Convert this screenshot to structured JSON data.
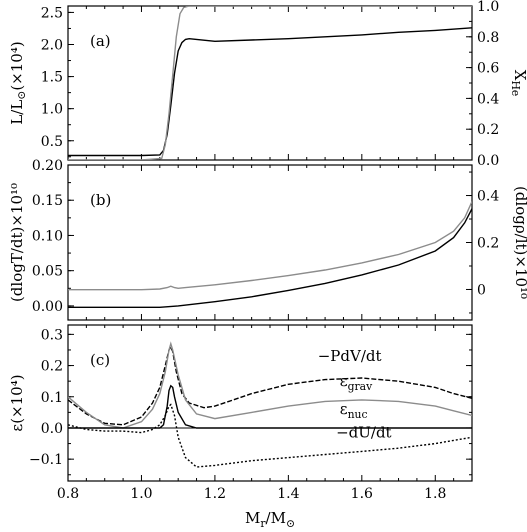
{
  "chart_data": [
    {
      "type": "line",
      "panel_label": "(a)",
      "xlim": [
        0.8,
        1.9
      ],
      "ylim": [
        0.2,
        2.6
      ],
      "y2lim": [
        0,
        1.0
      ],
      "ylabel": "L/L⊙(×10⁴)",
      "y2label": "X_He",
      "yticks": [
        0.5,
        1.0,
        1.5,
        2.0,
        2.5
      ],
      "ytick_labels": [
        "0.5",
        "1.0",
        "1.5",
        "2.0",
        "2.5"
      ],
      "y2ticks": [
        0,
        0.2,
        0.4,
        0.6,
        0.8,
        1.0
      ],
      "y2tick_labels": [
        "0.0",
        "0.2",
        "0.4",
        "0.6",
        "0.8",
        "1.0"
      ],
      "series": [
        {
          "color": "#000000",
          "x": [
            0.8,
            1.0,
            1.05,
            1.06,
            1.07,
            1.08,
            1.09,
            1.1,
            1.11,
            1.12,
            1.13,
            1.15,
            1.2,
            1.3,
            1.4,
            1.5,
            1.6,
            1.7,
            1.8,
            1.9
          ],
          "y": [
            0.27,
            0.27,
            0.28,
            0.35,
            0.6,
            1.05,
            1.55,
            1.9,
            2.03,
            2.08,
            2.09,
            2.08,
            2.05,
            2.07,
            2.09,
            2.12,
            2.15,
            2.19,
            2.22,
            2.26
          ]
        },
        {
          "color": "#8c8c8c",
          "axis": "right",
          "x": [
            0.8,
            1.0,
            1.055,
            1.065,
            1.075,
            1.085,
            1.095,
            1.105,
            1.115,
            1.13,
            1.9
          ],
          "y": [
            0.0,
            0.0,
            0.01,
            0.1,
            0.3,
            0.55,
            0.8,
            0.95,
            0.99,
            1.0,
            1.0
          ]
        }
      ]
    },
    {
      "type": "line",
      "panel_label": "(b)",
      "xlim": [
        0.8,
        1.9
      ],
      "ylim": [
        -0.02,
        0.2
      ],
      "y2lim": [
        -0.13,
        0.53
      ],
      "ylabel": "(dlogT/dt)×10¹⁰",
      "y2label": "(dlogρ/lt)×10¹⁰",
      "yticks": [
        0.0,
        0.05,
        0.1,
        0.15,
        0.2
      ],
      "ytick_labels": [
        "0.00",
        "0.05",
        "0.10",
        "0.15",
        "0.20"
      ],
      "y2ticks": [
        0,
        0.2,
        0.4
      ],
      "y2tick_labels": [
        "0",
        "0.2",
        "0.4"
      ],
      "series": [
        {
          "color": "#000000",
          "x": [
            0.8,
            1.0,
            1.05,
            1.1,
            1.2,
            1.3,
            1.4,
            1.5,
            1.6,
            1.7,
            1.8,
            1.85,
            1.88,
            1.9
          ],
          "y": [
            -0.002,
            -0.002,
            -0.002,
            0.0,
            0.006,
            0.013,
            0.022,
            0.032,
            0.044,
            0.058,
            0.078,
            0.097,
            0.118,
            0.138
          ]
        },
        {
          "color": "#8c8c8c",
          "x": [
            0.8,
            1.0,
            1.05,
            1.07,
            1.08,
            1.09,
            1.1,
            1.12,
            1.2,
            1.3,
            1.4,
            1.5,
            1.6,
            1.7,
            1.8,
            1.85,
            1.88,
            1.9
          ],
          "y": [
            0.023,
            0.023,
            0.024,
            0.026,
            0.028,
            0.026,
            0.025,
            0.026,
            0.03,
            0.036,
            0.043,
            0.051,
            0.061,
            0.073,
            0.09,
            0.106,
            0.125,
            0.148
          ]
        }
      ]
    },
    {
      "type": "line",
      "panel_label": "(c)",
      "xlim": [
        0.8,
        1.9
      ],
      "ylim": [
        -0.17,
        0.33
      ],
      "xlabel": "M_r/M⊙",
      "ylabel": "ε(×10⁴)",
      "xticks": [
        0.8,
        1.0,
        1.2,
        1.4,
        1.6,
        1.8
      ],
      "xtick_labels": [
        "0.8",
        "1.0",
        "1.2",
        "1.4",
        "1.6",
        "1.8"
      ],
      "yticks": [
        -0.1,
        0.0,
        0.1,
        0.2,
        0.3
      ],
      "ytick_labels": [
        "−0.1",
        "0.0",
        "0.1",
        "0.2",
        "0.3"
      ],
      "annotations": [
        {
          "text": "−PdV/dt",
          "x": 1.48,
          "y": 0.215
        },
        {
          "text": "ε",
          "sub": "grav",
          "x": 1.54,
          "y": 0.135
        },
        {
          "text": "ε",
          "sub": "nuc",
          "x": 1.54,
          "y": 0.045
        },
        {
          "text": "−dU/dt",
          "x": 1.53,
          "y": -0.03
        }
      ],
      "series": [
        {
          "name": "−PdV/dt",
          "color": "#000000",
          "dash": "5,2",
          "x": [
            0.8,
            0.85,
            0.9,
            0.95,
            1.0,
            1.03,
            1.05,
            1.065,
            1.075,
            1.08,
            1.085,
            1.095,
            1.11,
            1.13,
            1.17,
            1.2,
            1.25,
            1.3,
            1.4,
            1.5,
            1.6,
            1.7,
            1.8,
            1.85,
            1.9
          ],
          "y": [
            0.09,
            0.045,
            0.015,
            0.01,
            0.035,
            0.08,
            0.13,
            0.2,
            0.25,
            0.26,
            0.245,
            0.18,
            0.11,
            0.08,
            0.065,
            0.07,
            0.09,
            0.11,
            0.14,
            0.155,
            0.16,
            0.15,
            0.13,
            0.11,
            0.095
          ]
        },
        {
          "name": "εgrav",
          "color": "#8c8c8c",
          "x": [
            0.8,
            0.85,
            0.9,
            0.95,
            1.0,
            1.03,
            1.05,
            1.065,
            1.075,
            1.08,
            1.085,
            1.1,
            1.12,
            1.15,
            1.2,
            1.3,
            1.4,
            1.5,
            1.6,
            1.7,
            1.8,
            1.85,
            1.9
          ],
          "y": [
            0.1,
            0.05,
            0.01,
            0.0,
            0.02,
            0.06,
            0.11,
            0.18,
            0.25,
            0.27,
            0.25,
            0.17,
            0.09,
            0.045,
            0.03,
            0.05,
            0.07,
            0.085,
            0.09,
            0.085,
            0.07,
            0.055,
            0.04
          ]
        },
        {
          "name": "εnuc",
          "color": "#000000",
          "x": [
            0.8,
            1.05,
            1.06,
            1.07,
            1.075,
            1.08,
            1.085,
            1.09,
            1.1,
            1.12,
            1.15,
            1.9
          ],
          "y": [
            0.0,
            0.0,
            0.01,
            0.07,
            0.12,
            0.135,
            0.13,
            0.1,
            0.05,
            0.01,
            0.0,
            0.0
          ]
        },
        {
          "name": "−dU/dt",
          "color": "#000000",
          "dash": "2,2",
          "x": [
            0.8,
            0.85,
            0.9,
            0.95,
            1.0,
            1.03,
            1.05,
            1.065,
            1.075,
            1.08,
            1.09,
            1.1,
            1.12,
            1.15,
            1.2,
            1.3,
            1.4,
            1.5,
            1.6,
            1.7,
            1.8,
            1.85,
            1.9
          ],
          "y": [
            0.01,
            -0.005,
            -0.01,
            -0.01,
            -0.015,
            -0.005,
            0.01,
            0.04,
            0.07,
            0.075,
            0.04,
            -0.03,
            -0.095,
            -0.125,
            -0.12,
            -0.105,
            -0.095,
            -0.085,
            -0.075,
            -0.065,
            -0.05,
            -0.04,
            -0.03
          ]
        }
      ]
    }
  ]
}
